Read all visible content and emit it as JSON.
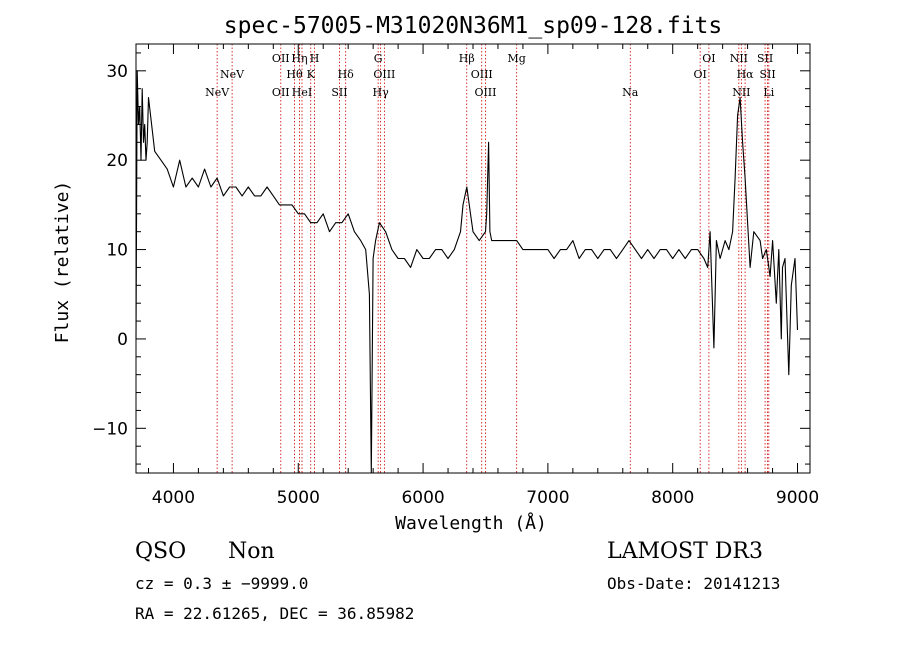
{
  "chart_data": {
    "type": "line",
    "title": "spec-57005-M31020N36M1_sp09-128.fits",
    "xlabel": "Wavelength (Å)",
    "ylabel": "Flux (relative)",
    "xlim": [
      3700,
      9100
    ],
    "ylim": [
      -15,
      33
    ],
    "x_ticks": [
      4000,
      5000,
      6000,
      7000,
      8000,
      9000
    ],
    "y_ticks": [
      -10,
      0,
      10,
      20,
      30
    ],
    "x_tick_labels": [
      "4000",
      "5000",
      "6000",
      "7000",
      "8000",
      "9000"
    ],
    "y_tick_labels": [
      "−10",
      "0",
      "10",
      "20",
      "30"
    ],
    "line_color": "#000000",
    "marker_color": "#cc0000",
    "series": [
      {
        "name": "flux",
        "x": [
          3700,
          3710,
          3720,
          3730,
          3740,
          3750,
          3760,
          3770,
          3780,
          3790,
          3800,
          3850,
          3900,
          3950,
          4000,
          4050,
          4100,
          4150,
          4200,
          4250,
          4300,
          4350,
          4400,
          4450,
          4500,
          4550,
          4600,
          4650,
          4700,
          4750,
          4800,
          4850,
          4900,
          4950,
          5000,
          5050,
          5100,
          5150,
          5200,
          5250,
          5300,
          5350,
          5400,
          5450,
          5500,
          5540,
          5570,
          5585,
          5600,
          5620,
          5650,
          5700,
          5750,
          5800,
          5850,
          5900,
          5950,
          6000,
          6050,
          6100,
          6150,
          6200,
          6250,
          6300,
          6320,
          6350,
          6380,
          6400,
          6450,
          6500,
          6510,
          6525,
          6535,
          6550,
          6600,
          6650,
          6700,
          6750,
          6800,
          6850,
          6900,
          6950,
          7000,
          7050,
          7100,
          7150,
          7200,
          7250,
          7300,
          7350,
          7400,
          7450,
          7500,
          7550,
          7600,
          7650,
          7700,
          7750,
          7800,
          7850,
          7900,
          7950,
          8000,
          8050,
          8100,
          8150,
          8200,
          8250,
          8280,
          8300,
          8330,
          8350,
          8380,
          8400,
          8420,
          8450,
          8480,
          8500,
          8520,
          8540,
          8560,
          8580,
          8600,
          8620,
          8650,
          8700,
          8720,
          8750,
          8780,
          8800,
          8830,
          8850,
          8870,
          8880,
          8900,
          8930,
          8950,
          8980,
          9000
        ],
        "y": [
          0,
          30,
          24,
          26,
          20,
          28,
          22,
          24,
          20,
          22,
          27,
          21,
          20,
          19,
          17,
          20,
          17,
          18,
          17,
          19,
          17,
          18,
          16,
          17,
          17,
          16,
          17,
          16,
          16,
          17,
          16,
          15,
          15,
          15,
          14,
          14,
          13,
          13,
          14,
          12,
          13,
          13,
          14,
          12,
          11,
          10,
          5,
          -15,
          9,
          11,
          13,
          12,
          10,
          9,
          9,
          8,
          10,
          9,
          9,
          10,
          10,
          9,
          10,
          12,
          15,
          17,
          14,
          12,
          11,
          12,
          14,
          22,
          12,
          11,
          11,
          11,
          11,
          11,
          10,
          10,
          10,
          10,
          10,
          9,
          10,
          10,
          11,
          9,
          10,
          10,
          9,
          10,
          10,
          9,
          10,
          11,
          10,
          9,
          10,
          9,
          10,
          10,
          9,
          10,
          9,
          10,
          10,
          9,
          8,
          12,
          -1,
          11,
          9,
          10,
          11,
          10,
          12,
          18,
          25,
          27,
          22,
          18,
          13,
          8,
          12,
          11,
          9,
          10,
          7,
          11,
          4,
          10,
          0,
          8,
          9,
          -4,
          6,
          9,
          1
        ]
      }
    ],
    "lines": [
      {
        "wavelength": 4350,
        "label": "NeV",
        "row": 3
      },
      {
        "wavelength": 4470,
        "label": "NeV",
        "row": 2
      },
      {
        "wavelength": 4860,
        "label": "OII",
        "row": 1
      },
      {
        "wavelength": 4860,
        "label": "OII",
        "row": 3
      },
      {
        "wavelength": 4970,
        "label": "Hθ",
        "row": 2
      },
      {
        "wavelength": 5010,
        "label": "Hη",
        "row": 1
      },
      {
        "wavelength": 5030,
        "label": "HeI",
        "row": 3
      },
      {
        "wavelength": 5130,
        "label": "H",
        "row": 1
      },
      {
        "wavelength": 5100,
        "label": "K",
        "row": 2
      },
      {
        "wavelength": 5330,
        "label": "SII",
        "row": 3
      },
      {
        "wavelength": 5380,
        "label": "Hδ",
        "row": 2
      },
      {
        "wavelength": 5640,
        "label": "G",
        "row": 1
      },
      {
        "wavelength": 5660,
        "label": "Hγ",
        "row": 3
      },
      {
        "wavelength": 5690,
        "label": "OIII",
        "row": 2
      },
      {
        "wavelength": 6350,
        "label": "Hβ",
        "row": 1
      },
      {
        "wavelength": 6470,
        "label": "OIII",
        "row": 2
      },
      {
        "wavelength": 6500,
        "label": "OIII",
        "row": 3
      },
      {
        "wavelength": 6750,
        "label": "Mg",
        "row": 1
      },
      {
        "wavelength": 7660,
        "label": "Na",
        "row": 3
      },
      {
        "wavelength": 8220,
        "label": "OI",
        "row": 2
      },
      {
        "wavelength": 8290,
        "label": "OI",
        "row": 1
      },
      {
        "wavelength": 8530,
        "label": "NII",
        "row": 1
      },
      {
        "wavelength": 8550,
        "label": "NII",
        "row": 3
      },
      {
        "wavelength": 8580,
        "label": "Hα",
        "row": 2
      },
      {
        "wavelength": 8740,
        "label": "SII",
        "row": 1
      },
      {
        "wavelength": 8760,
        "label": "SII",
        "row": 2
      },
      {
        "wavelength": 8770,
        "label": "Li",
        "row": 3
      }
    ]
  },
  "info": {
    "class": "QSO",
    "subclass": "Non",
    "survey": "LAMOST DR3",
    "cz": "cz = 0.3 ± −9999.0",
    "obs_date": "Obs-Date: 20141213",
    "coords": "RA =  22.61265, DEC =  36.85982"
  }
}
